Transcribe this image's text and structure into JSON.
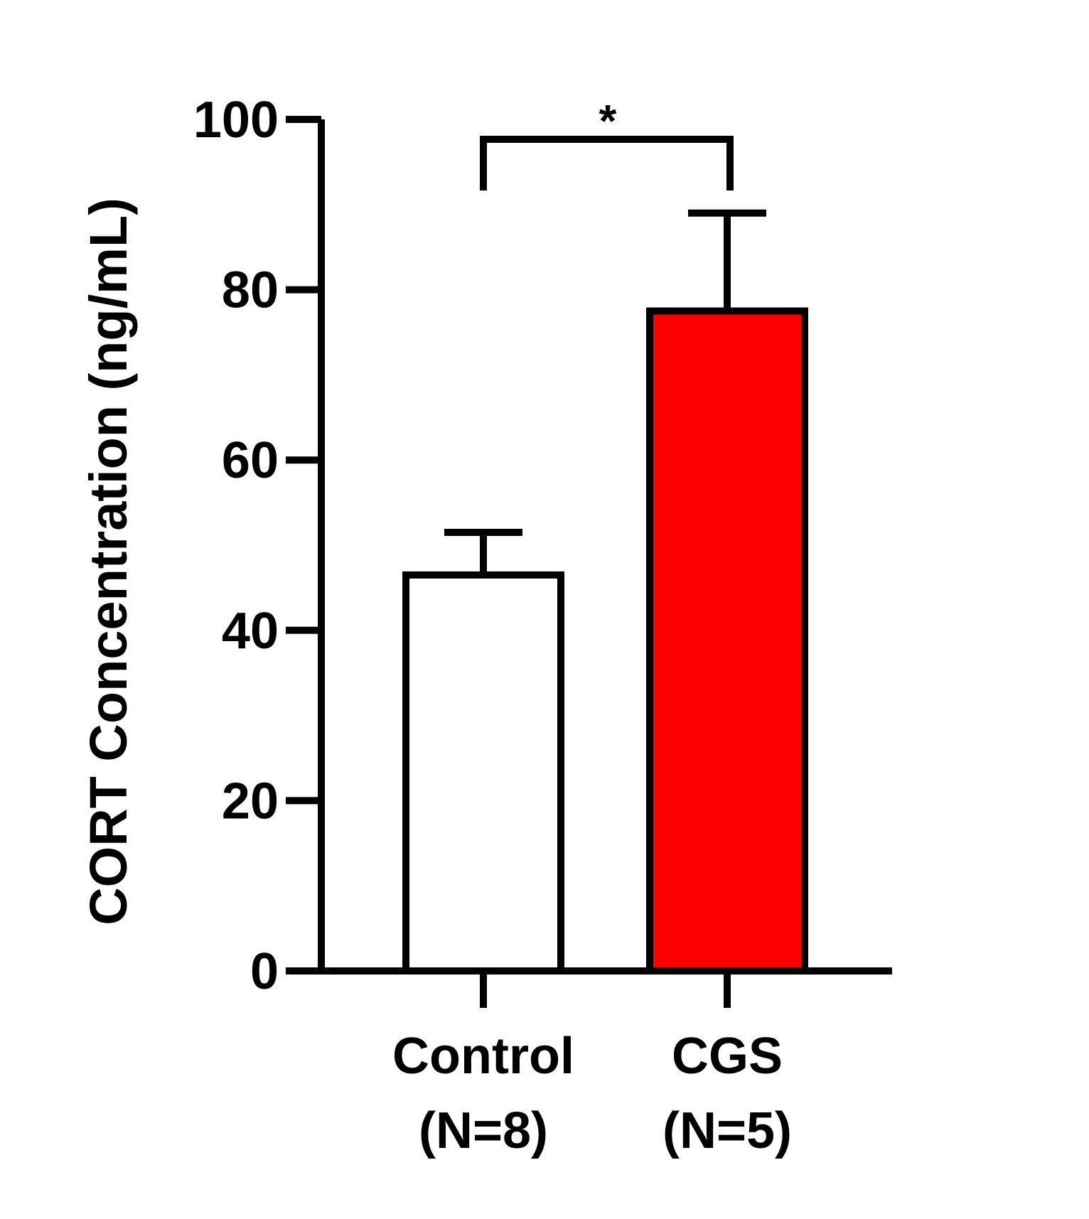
{
  "chart_data": {
    "type": "bar",
    "title": "",
    "xlabel": "",
    "ylabel": "CORT Concentration (ng/mL)",
    "ylim": [
      0,
      100
    ],
    "yticks": [
      "0",
      "20",
      "40",
      "60",
      "80",
      "100"
    ],
    "grid": false,
    "categories": [
      {
        "name": "Control",
        "n_label": "(N=8)"
      },
      {
        "name": "CGS",
        "n_label": "(N=5)"
      }
    ],
    "values": [
      46.5,
      77.5
    ],
    "errors": [
      5.0,
      11.5
    ],
    "bar_colors": [
      "#ffffff",
      "#ff0000"
    ],
    "bar_edge_color": "#000000",
    "significance": {
      "between": [
        "Control",
        "CGS"
      ],
      "label": "*"
    }
  }
}
